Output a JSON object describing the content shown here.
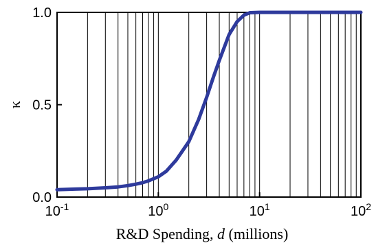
{
  "chart_data": {
    "type": "line",
    "xscale": "log",
    "xlim": [
      0.1,
      100
    ],
    "ylim": [
      0,
      1
    ],
    "grid": {
      "x_minor_log": true,
      "y": false
    },
    "xlabel_parts": [
      "R&D Spending, ",
      "d",
      " (millions)"
    ],
    "ylabel": "κ",
    "x_ticks": [
      {
        "value": 0.1,
        "base": "10",
        "exp": "-1"
      },
      {
        "value": 1,
        "base": "10",
        "exp": "0"
      },
      {
        "value": 10,
        "base": "10",
        "exp": "1"
      },
      {
        "value": 100,
        "base": "10",
        "exp": "2"
      }
    ],
    "y_ticks": [
      {
        "value": 0,
        "label": "0.0"
      },
      {
        "value": 0.5,
        "label": "0.5"
      },
      {
        "value": 1,
        "label": "1.0"
      }
    ],
    "series": [
      {
        "color": "#2e3a9c",
        "x": [
          0.1,
          0.15,
          0.2,
          0.3,
          0.4,
          0.5,
          0.6,
          0.7,
          0.8,
          1.0,
          1.2,
          1.5,
          2.0,
          2.5,
          3.0,
          3.5,
          4.0,
          5.0,
          6.0,
          7.0,
          8.0,
          10,
          12,
          15,
          20,
          30,
          50,
          100
        ],
        "y": [
          0.04,
          0.043,
          0.045,
          0.05,
          0.055,
          0.062,
          0.07,
          0.078,
          0.088,
          0.11,
          0.14,
          0.2,
          0.3,
          0.42,
          0.54,
          0.65,
          0.74,
          0.88,
          0.95,
          0.985,
          0.998,
          1.0,
          1.0,
          1.0,
          1.0,
          1.0,
          1.0,
          1.0
        ]
      }
    ]
  }
}
